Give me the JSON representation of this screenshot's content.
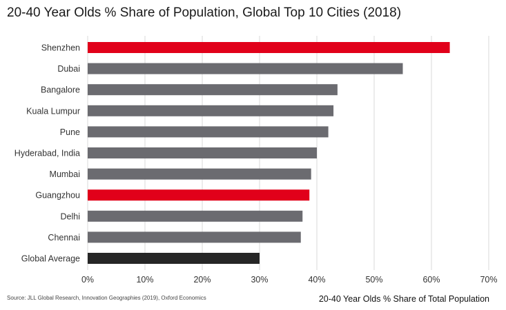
{
  "title": "20-40 Year Olds % Share of Population, Global Top 10 Cities (2018)",
  "source": "Source: JLL Global Research, Innovation Geographies (2019), Oxford Economics",
  "chart_data": {
    "type": "bar",
    "orientation": "horizontal",
    "title": "20-40 Year Olds % Share of Population, Global Top 10 Cities (2018)",
    "xlabel": "20-40 Year Olds % Share of Total Population",
    "ylabel": "",
    "categories": [
      "Shenzhen",
      "Dubai",
      "Bangalore",
      "Kuala Lumpur",
      "Pune",
      "Hyderabad, India",
      "Mumbai",
      "Guangzhou",
      "Delhi",
      "Chennai",
      "Global Average"
    ],
    "values": [
      63.2,
      55.0,
      43.6,
      42.9,
      42.0,
      40.0,
      39.0,
      38.7,
      37.5,
      37.2,
      30.0
    ],
    "unit": "%",
    "xlim": [
      0,
      70
    ],
    "ticks": [
      "0%",
      "10%",
      "20%",
      "30%",
      "40%",
      "50%",
      "60%",
      "70%"
    ],
    "grid": "vertical",
    "colors": {
      "highlight": "#e1001a",
      "default": "#6b6b70",
      "average": "#262626"
    },
    "bar_colors": [
      "highlight",
      "default",
      "default",
      "default",
      "default",
      "default",
      "default",
      "highlight",
      "default",
      "default",
      "average"
    ]
  }
}
